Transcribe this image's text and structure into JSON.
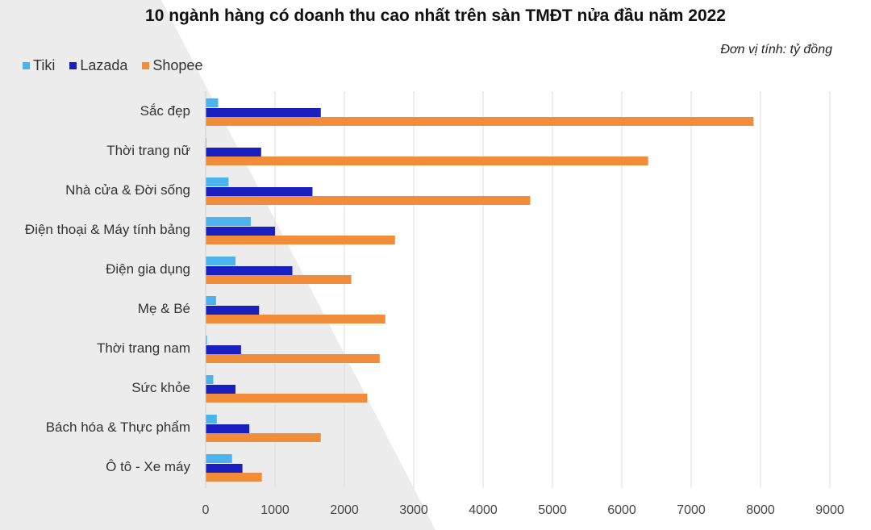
{
  "chart_data": {
    "type": "bar",
    "orientation": "horizontal",
    "title": "10 ngành hàng có doanh thu cao nhất trên sàn TMĐT nửa đầu năm 2022",
    "unit_note": "Đơn vị tính: tỷ đồng",
    "categories": [
      "Sắc đẹp",
      "Thời trang nữ",
      "Nhà cửa & Đời sống",
      "Điện thoại & Máy tính bảng",
      "Điện gia dụng",
      "Mẹ & Bé",
      "Thời trang nam",
      "Sức khỏe",
      "Bách hóa & Thực phẩm",
      "Ô tô - Xe máy"
    ],
    "series": [
      {
        "name": "Tiki",
        "color": "#4db3ec",
        "values": [
          180,
          10,
          330,
          650,
          430,
          150,
          20,
          110,
          160,
          380
        ]
      },
      {
        "name": "Lazada",
        "color": "#1a1fbf",
        "values": [
          1660,
          800,
          1540,
          1000,
          1250,
          770,
          510,
          430,
          630,
          530
        ]
      },
      {
        "name": "Shopee",
        "color": "#f08c3a",
        "values": [
          7900,
          6380,
          4680,
          2730,
          2100,
          2590,
          2510,
          2330,
          1660,
          810
        ]
      }
    ],
    "xlim": [
      0,
      9000
    ],
    "x_ticks": [
      "0",
      "1000",
      "2000",
      "3000",
      "4000",
      "5000",
      "6000",
      "7000",
      "8000",
      "9000"
    ],
    "grid": true,
    "legend_position": "top-left"
  }
}
